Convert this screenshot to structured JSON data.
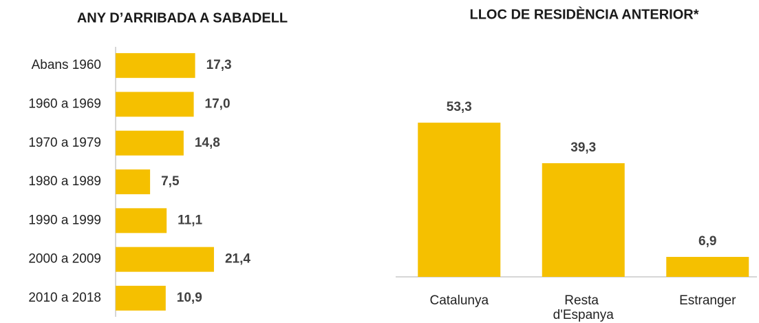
{
  "chart_data": [
    {
      "type": "hbar",
      "title": "ANY D’ARRIBADA A SABADELL",
      "categories": [
        "Abans 1960",
        "1960 a 1969",
        "1970 a 1979",
        "1980 a 1989",
        "1990 a 1999",
        "2000 a 2009",
        "2010 a 2018"
      ],
      "values": [
        17.3,
        17.0,
        14.8,
        7.5,
        11.1,
        21.4,
        10.9
      ],
      "value_labels": [
        "17,3",
        "17,0",
        "14,8",
        "7,5",
        "11,1",
        "21,4",
        "10,9"
      ],
      "color": "#f5c000",
      "xlim": [
        0,
        25
      ]
    },
    {
      "type": "bar",
      "title": "LLOC DE RESIDÈNCIA ANTERIOR*",
      "categories": [
        "Catalunya",
        "Resta d'Espanya",
        "Estranger"
      ],
      "values": [
        53.3,
        39.3,
        6.9
      ],
      "value_labels": [
        "53,3",
        "39,3",
        "6,9"
      ],
      "color": "#f5c000",
      "ylim": [
        0,
        60
      ]
    }
  ]
}
